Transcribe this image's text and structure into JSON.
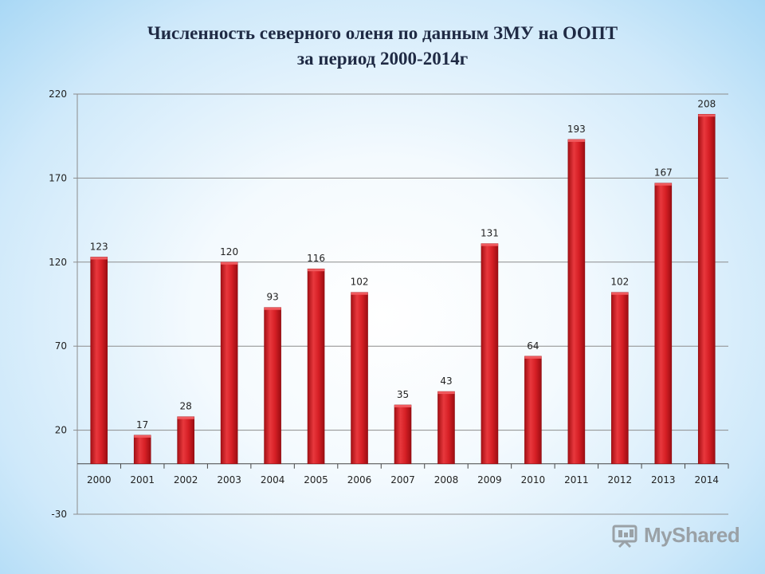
{
  "title": {
    "line1": "Численность северного оленя по данным ЗМУ на ООПТ",
    "line2": "за период 2000-2014г"
  },
  "watermark": {
    "text": "MyShared",
    "icon": "presentation-board-icon"
  },
  "colors": {
    "bar": "#c8171c",
    "bar_light": "#e8383d",
    "grid": "#8c8c8c"
  },
  "chart_data": {
    "type": "bar",
    "title": "Численность северного оленя по данным ЗМУ на ООПТ за период 2000-2014г",
    "xlabel": "",
    "ylabel": "",
    "categories": [
      "2000",
      "2001",
      "2002",
      "2003",
      "2004",
      "2005",
      "2006",
      "2007",
      "2008",
      "2009",
      "2010",
      "2011",
      "2012",
      "2013",
      "2014"
    ],
    "values": [
      123,
      17,
      28,
      120,
      93,
      116,
      102,
      35,
      43,
      131,
      64,
      193,
      102,
      167,
      208
    ],
    "ylim": [
      -30,
      220
    ],
    "yticks": [
      -30,
      20,
      70,
      120,
      170,
      220
    ],
    "baseline": 0,
    "grid": true,
    "data_labels": true,
    "legend": "none"
  }
}
